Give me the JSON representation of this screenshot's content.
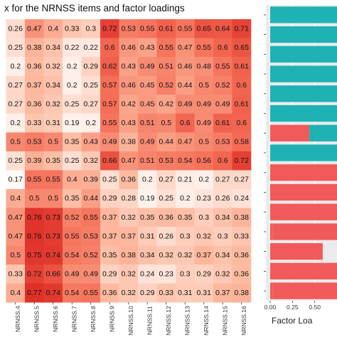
{
  "title": "x for the NRNSS items and factor loadings",
  "chart_data": [
    {
      "type": "heatmap",
      "title": "x for the NRNSS items and factor loadings",
      "columns": [
        "NRNSS.4",
        "NRNSS.5",
        "NRNSS.6",
        "NRNSS.7",
        "NRNSS.8",
        "NRNSS.9",
        "NRNSS.10",
        "NRNSS.11",
        "NRNSS.12",
        "NRNSS.13",
        "NRNSS.14",
        "NRNSS.15",
        "NRNSS.16"
      ],
      "values": [
        [
          0.26,
          0.47,
          0.4,
          0.33,
          0.3,
          0.72,
          0.53,
          0.55,
          0.61,
          0.55,
          0.65,
          0.64,
          0.71
        ],
        [
          0.25,
          0.38,
          0.34,
          0.22,
          0.22,
          0.6,
          0.46,
          0.43,
          0.55,
          0.47,
          0.55,
          0.6,
          0.65
        ],
        [
          0.2,
          0.36,
          0.32,
          0.2,
          0.29,
          0.62,
          0.43,
          0.49,
          0.51,
          0.46,
          0.48,
          0.55,
          0.61
        ],
        [
          0.27,
          0.37,
          0.34,
          0.2,
          0.25,
          0.57,
          0.46,
          0.45,
          0.52,
          0.44,
          0.5,
          0.52,
          0.6
        ],
        [
          0.27,
          0.36,
          0.32,
          0.25,
          0.27,
          0.57,
          0.42,
          0.45,
          0.42,
          0.49,
          0.49,
          0.49,
          0.61
        ],
        [
          0.2,
          0.33,
          0.31,
          0.19,
          0.2,
          0.55,
          0.43,
          0.51,
          0.5,
          0.6,
          0.49,
          0.61,
          0.6
        ],
        [
          0.5,
          0.53,
          0.5,
          0.35,
          0.43,
          0.49,
          0.38,
          0.49,
          0.44,
          0.47,
          0.5,
          0.53,
          0.58
        ],
        [
          0.25,
          0.39,
          0.35,
          0.25,
          0.32,
          0.66,
          0.47,
          0.51,
          0.53,
          0.54,
          0.56,
          0.6,
          0.72
        ],
        [
          0.17,
          0.55,
          0.55,
          0.4,
          0.39,
          0.25,
          0.36,
          0.2,
          0.27,
          0.21,
          0.2,
          0.27,
          0.27
        ],
        [
          0.4,
          0.5,
          0.5,
          0.35,
          0.44,
          0.29,
          0.28,
          0.19,
          0.25,
          0.2,
          0.23,
          0.26,
          0.24
        ],
        [
          0.47,
          0.76,
          0.73,
          0.52,
          0.55,
          0.37,
          0.32,
          0.35,
          0.36,
          0.35,
          0.3,
          0.34,
          0.38
        ],
        [
          0.47,
          0.76,
          0.73,
          0.55,
          0.53,
          0.37,
          0.37,
          0.31,
          0.26,
          0.3,
          0.32,
          0.3,
          0.33
        ],
        [
          0.5,
          0.75,
          0.74,
          0.54,
          0.52,
          0.35,
          0.38,
          0.34,
          0.32,
          0.32,
          0.37,
          0.34,
          0.36
        ],
        [
          0.33,
          0.72,
          0.66,
          0.49,
          0.49,
          0.29,
          0.32,
          0.24,
          0.23,
          0.3,
          0.29,
          0.32,
          0.36
        ],
        [
          0.4,
          0.77,
          0.74,
          0.54,
          0.55,
          0.36,
          0.32,
          0.29,
          0.33,
          0.31,
          0.31,
          0.37,
          0.38
        ]
      ]
    },
    {
      "type": "bar",
      "orientation": "horizontal",
      "stacked": true,
      "xlabel": "Factor Loa",
      "xlim": [
        0,
        0.75
      ],
      "xticks": [
        "0.00",
        "0.25",
        "0.50"
      ],
      "series": [
        {
          "color": "#f15a5a",
          "values": [
            0,
            0,
            0,
            0,
            0,
            0,
            0.44,
            0,
            0.02,
            0.02,
            0.02,
            0.03,
            0.02,
            0.02,
            0.03
          ]
        },
        {
          "color": "#1fb2b5",
          "values": [
            0.75,
            0.75,
            0.75,
            0.75,
            0.75,
            0.75,
            0.31,
            0.75,
            0,
            0,
            0,
            0,
            0,
            0,
            0
          ]
        },
        {
          "color": "#f15a5a",
          "values": [
            0,
            0,
            0,
            0,
            0,
            0,
            0,
            0,
            0.73,
            0.73,
            0.73,
            0.73,
            0.57,
            0.73,
            0.73
          ]
        }
      ]
    }
  ]
}
